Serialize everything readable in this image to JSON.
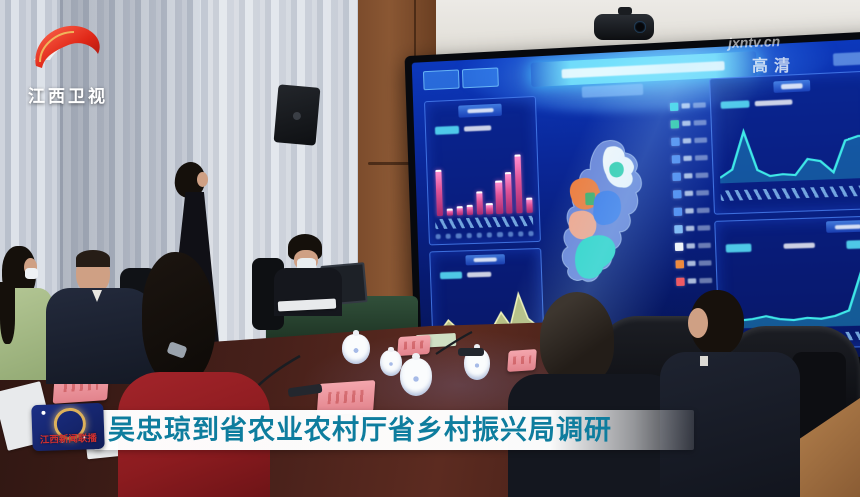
{
  "branding": {
    "channel_logo_text": "江西卫视",
    "watermark_site": "jxntv.cn",
    "watermark_quality": "高清"
  },
  "caption": {
    "program_badge": "江西新闻联播",
    "headline": "吴忠琼到省农业农村厅省乡村振兴局调研"
  },
  "colors": {
    "headline_teal": "#0e7d9e",
    "logo_red": "#d42318",
    "dashboard_blue": "#0a2a9a",
    "bar_magenta": "#e0559a",
    "chart_cyan": "#3fe8e8",
    "area_yellow": "#d6de8a"
  },
  "chart_data": [
    {
      "id": "left-bar",
      "type": "bar",
      "panel": "dashboard-left-top",
      "title": "",
      "values": [
        62,
        7,
        9,
        11,
        30,
        13,
        44,
        55,
        78,
        18
      ],
      "ylim": [
        0,
        100
      ],
      "note": "relative bar heights in % estimated from screen pixels; labels illegible"
    },
    {
      "id": "left-area",
      "type": "area",
      "panel": "dashboard-left-bottom",
      "values": [
        6,
        30,
        12,
        7,
        7,
        9,
        12,
        44,
        16,
        82,
        30,
        14
      ],
      "fill": "rgba(214,222,138,0.85)",
      "stroke": "#eef2bb"
    },
    {
      "id": "right-top",
      "type": "line",
      "panel": "dashboard-right-top",
      "values": [
        10,
        22,
        80,
        20,
        10,
        12,
        10,
        34,
        30,
        12,
        60,
        66,
        66
      ],
      "fill": "rgba(47,214,230,0.30)",
      "stroke": "#3fe8e8"
    },
    {
      "id": "right-bottom",
      "type": "area",
      "panel": "dashboard-right-bottom",
      "values": [
        16,
        12,
        14,
        18,
        13,
        11,
        14,
        12,
        16,
        24,
        85,
        78
      ],
      "fill": "rgba(47,214,230,0.35)",
      "stroke": "#3fe8e8"
    },
    {
      "id": "map",
      "type": "map",
      "panel": "dashboard-center",
      "title": "",
      "regions": [
        {
          "name": "province-base",
          "color": "#6b86d8"
        },
        {
          "name": "region-northeast",
          "color": "#f4f8fb"
        },
        {
          "name": "region-north-patch",
          "color": "#35d0b0"
        },
        {
          "name": "region-west",
          "color": "#ef7d3d"
        },
        {
          "name": "region-west-patch",
          "color": "#3fae6a"
        },
        {
          "name": "region-southwest",
          "color": "#f2a88e"
        },
        {
          "name": "region-center-east",
          "color": "#3f7de8"
        },
        {
          "name": "region-south",
          "color": "#2fd6c8"
        }
      ],
      "legend": [
        "#3fd6e8",
        "#2fc9a8",
        "#4f8df0",
        "#4f8df0",
        "#4f8df0",
        "#4f8df0",
        "#4f8df0",
        "#7fb9f5",
        "#f2f6fa",
        "#ef8a3c",
        "#ef5a64"
      ]
    }
  ]
}
